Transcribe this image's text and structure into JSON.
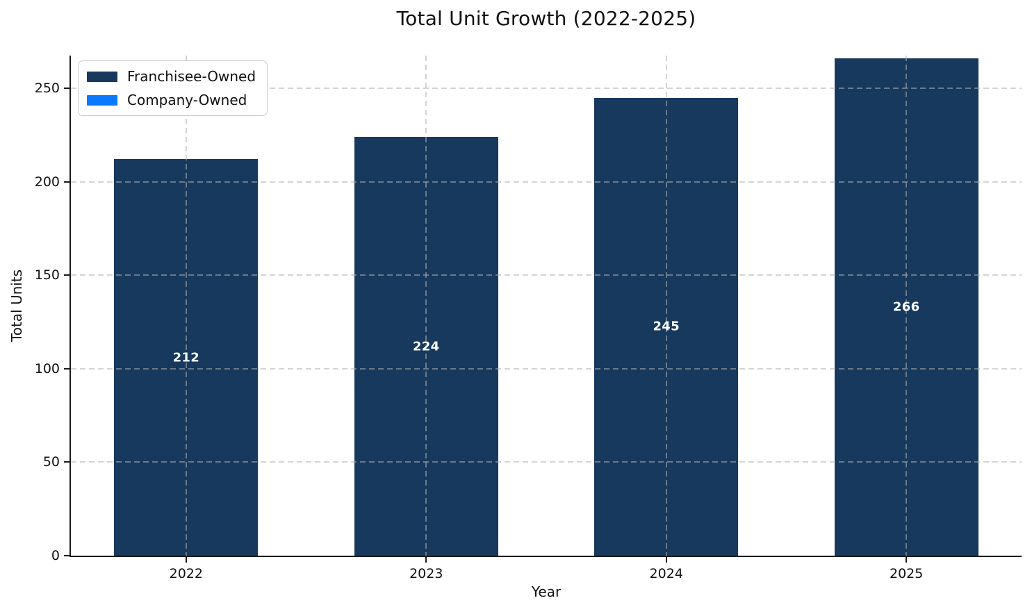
{
  "title": "Total Unit Growth (2022-2025)",
  "colors": {
    "franchisee_bar": "#17395D",
    "company_bar": "#0A78FF",
    "bar_value_text": "#FFFFFF",
    "grid": "#B0B0B0",
    "axis": "#1A1A1A",
    "legend_border": "#C9C9C9"
  },
  "legend": {
    "position": "upper left",
    "items": [
      {
        "label": "Franchisee-Owned",
        "color": "#17395D"
      },
      {
        "label": "Company-Owned",
        "color": "#0A78FF"
      }
    ]
  },
  "chart_data": {
    "type": "bar",
    "stacked": true,
    "title": "Total Unit Growth (2022-2025)",
    "xlabel": "Year",
    "ylabel": "Total Units",
    "categories": [
      "2022",
      "2023",
      "2024",
      "2025"
    ],
    "series": [
      {
        "name": "Franchisee-Owned",
        "color": "#17395D",
        "values": [
          212,
          224,
          245,
          266
        ]
      },
      {
        "name": "Company-Owned",
        "color": "#0A78FF",
        "values": [
          0,
          0,
          0,
          0
        ]
      }
    ],
    "bar_labels": [
      "212",
      "224",
      "245",
      "266"
    ],
    "yticks": [
      0,
      50,
      100,
      150,
      200,
      250
    ],
    "ylim": [
      0,
      267.5
    ],
    "grid": "dashed, horizontal and vertical, drawn over bars",
    "legend_position": "upper left",
    "bar_width_fraction": 0.6
  }
}
